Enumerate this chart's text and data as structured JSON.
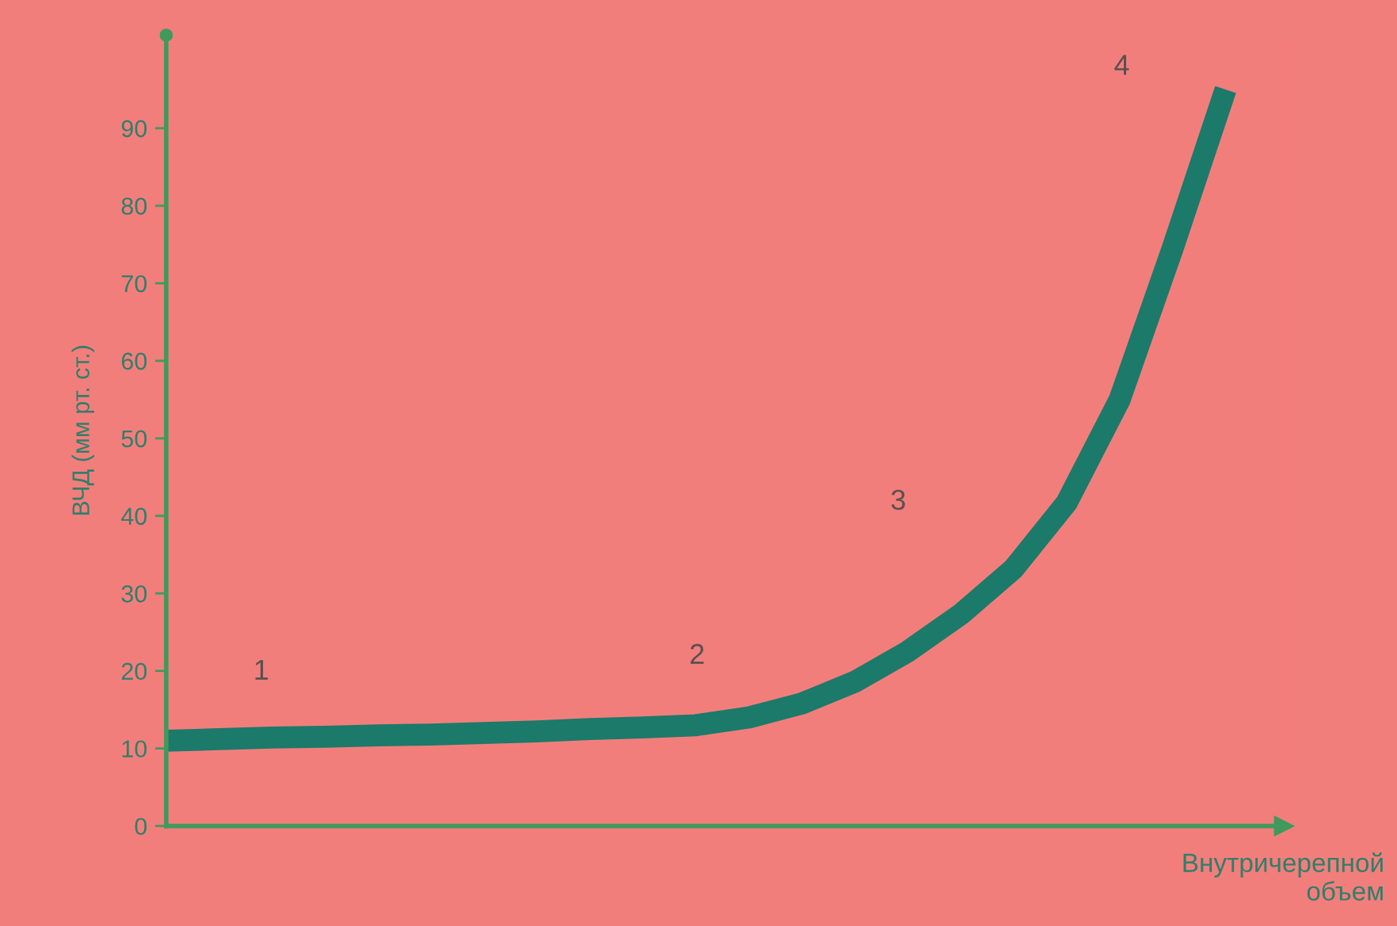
{
  "chart_data": {
    "type": "line",
    "xlabel": "Внутричерепной\nобъем",
    "ylabel": "ВЧД (мм рт. ст.)",
    "categories": [
      null,
      null,
      null,
      null,
      null,
      null,
      null,
      null,
      null,
      null,
      null,
      null,
      null,
      null,
      null,
      null,
      null,
      null,
      null,
      null,
      null
    ],
    "series": [
      {
        "color": "#1b7a6a",
        "values": [
          11,
          11.2,
          11.4,
          11.5,
          11.7,
          11.8,
          12,
          12.2,
          12.5,
          12.7,
          13,
          14,
          15.8,
          18.6,
          22.5,
          27.3,
          33.2,
          41.7,
          55,
          74.5,
          95
        ]
      }
    ],
    "ylim": [
      0,
      102
    ],
    "yticks": [
      0,
      10,
      20,
      30,
      40,
      50,
      60,
      70,
      80,
      90
    ],
    "annotations": [
      "1",
      "2",
      "3",
      "4"
    ],
    "grid": false,
    "legend": false,
    "marker": "none",
    "line_style": "solid",
    "tick_labels": "y"
  }
}
